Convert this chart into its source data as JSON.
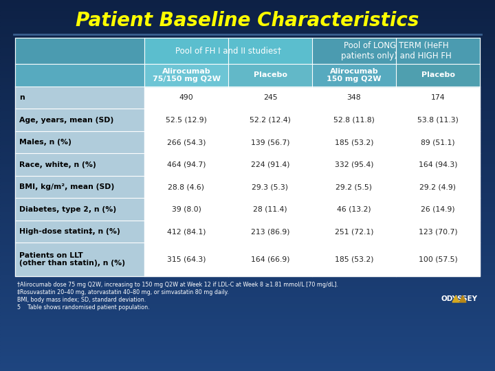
{
  "title": "Patient Baseline Characteristics",
  "title_color": "#FFFF00",
  "bg_color_top": "#0D2145",
  "bg_color_bottom": "#1B3D7A",
  "col1_header1": "Pool of FH I and II studies†",
  "col2_header1": "Pool of LONG TERM (HeFH\npatients only) and HIGH FH",
  "col_sub_headers": [
    "Alirocumab\n75/150 mg Q2W",
    "Placebo",
    "Alirocumab\n150 mg Q2W",
    "Placebo"
  ],
  "row_labels": [
    "n",
    "Age, years, mean (SD)",
    "Males, n (%)",
    "Race, white, n (%)",
    "BMI, kg/m², mean (SD)",
    "Diabetes, type 2, n (%)",
    "High-dose statin‡, n (%)",
    "Patients on LLT\n(other than statin), n (%)"
  ],
  "data": [
    [
      "490",
      "245",
      "348",
      "174"
    ],
    [
      "52.5 (12.9)",
      "52.2 (12.4)",
      "52.8 (11.8)",
      "53.8 (11.3)"
    ],
    [
      "266 (54.3)",
      "139 (56.7)",
      "185 (53.2)",
      "89 (51.1)"
    ],
    [
      "464 (94.7)",
      "224 (91.4)",
      "332 (95.4)",
      "164 (94.3)"
    ],
    [
      "28.8 (4.6)",
      "29.3 (5.3)",
      "29.2 (5.5)",
      "29.2 (4.9)"
    ],
    [
      "39 (8.0)",
      "28 (11.4)",
      "46 (13.2)",
      "26 (14.9)"
    ],
    [
      "412 (84.1)",
      "213 (86.9)",
      "251 (72.1)",
      "123 (70.7)"
    ],
    [
      "315 (64.3)",
      "164 (66.9)",
      "185 (53.2)",
      "100 (57.5)"
    ]
  ],
  "footnotes": [
    "†Alirocumab dose 75 mg Q2W, increasing to 150 mg Q2W at Week 12 if LDL-C at Week 8 ≥1.81 mmol/L [70 mg/dL].",
    "‡Rosuvastatin 20–40 mg, atorvastatin 40–80 mg, or simvastatin 80 mg daily.",
    "BMI, body mass index; SD, standard deviation.",
    "5    Table shows randomised patient population."
  ],
  "header1_color": "#5BB8C8",
  "header1_left_color": "#4A8FA8",
  "header2_color": "#6DC0D0",
  "header2_left_color": "#5AABB8",
  "row_label_color": "#A8C8DC",
  "row_data_color": "#FFFFFF",
  "border_color": "#FFFFFF",
  "label_text_color": "#000000",
  "data_text_color": "#333333",
  "header_text_color": "#FFFFFF"
}
